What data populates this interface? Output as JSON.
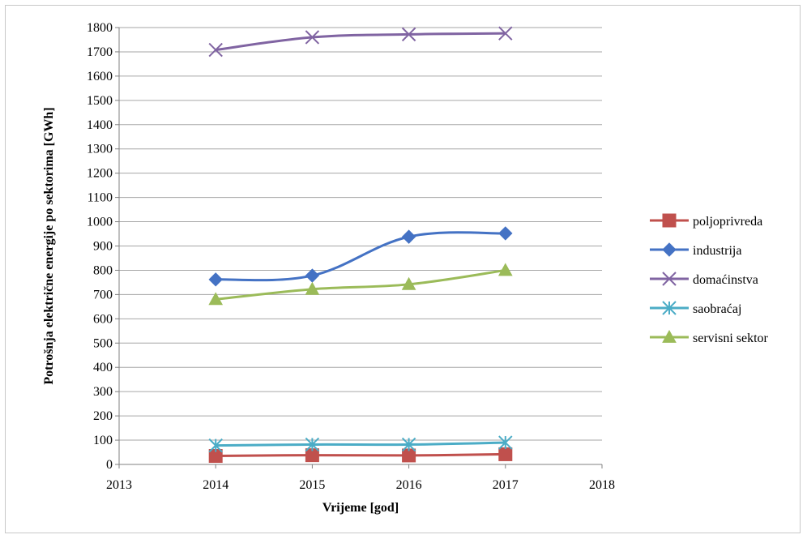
{
  "chart_data": {
    "type": "line",
    "xlabel": "Vrijeme [god]",
    "ylabel": "Potrošnja električne energije po sektorima [GWh]",
    "xlim": [
      2013,
      2018
    ],
    "ylim": [
      0,
      1800
    ],
    "xticks": [
      2013,
      2014,
      2015,
      2016,
      2017,
      2018
    ],
    "yticks": [
      0,
      100,
      200,
      300,
      400,
      500,
      600,
      700,
      800,
      900,
      1000,
      1100,
      1200,
      1300,
      1400,
      1500,
      1600,
      1700,
      1800
    ],
    "grid": "horizontal",
    "legend_position": "right",
    "x": [
      2014,
      2015,
      2016,
      2017
    ],
    "series": [
      {
        "name": "poljoprivreda",
        "values": [
          35,
          38,
          37,
          42
        ],
        "color": "#c0504d",
        "marker": "square"
      },
      {
        "name": "industrija",
        "values": [
          762,
          778,
          938,
          952
        ],
        "color": "#4472c4",
        "marker": "diamond"
      },
      {
        "name": "domaćinstva",
        "values": [
          1708,
          1760,
          1772,
          1776
        ],
        "color": "#8064a2",
        "marker": "x"
      },
      {
        "name": "saobraćaj",
        "values": [
          78,
          82,
          82,
          90
        ],
        "color": "#4bacc6",
        "marker": "star"
      },
      {
        "name": "servisni sektor",
        "values": [
          680,
          722,
          742,
          800
        ],
        "color": "#9bbb59",
        "marker": "triangle"
      }
    ]
  }
}
